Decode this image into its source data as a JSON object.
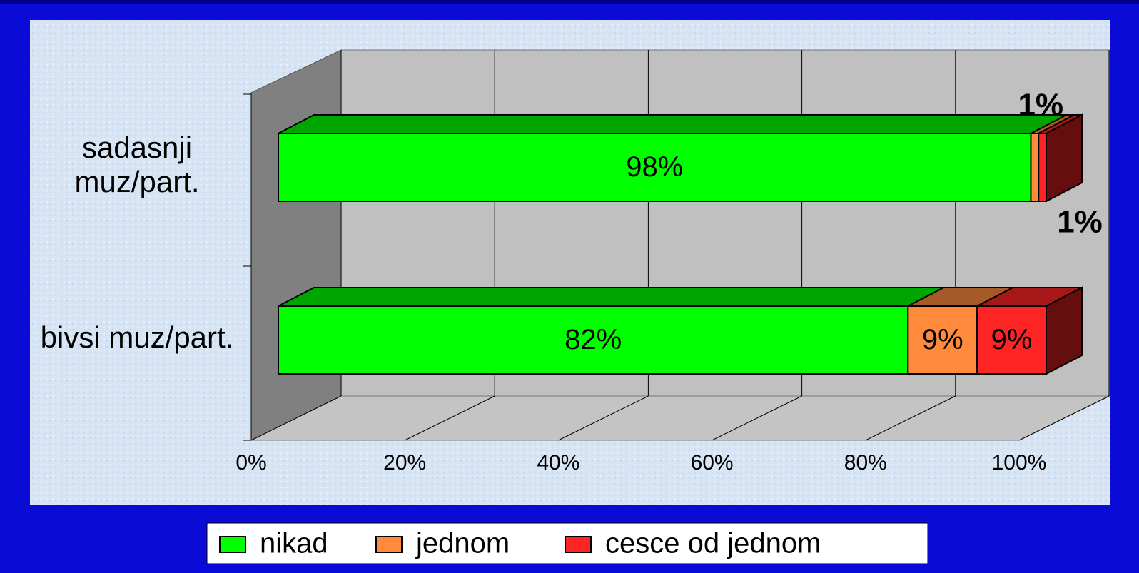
{
  "chart_data": {
    "type": "bar",
    "orientation": "horizontal",
    "stacked": true,
    "categories": [
      "sadasnji muz/part.",
      "bivsi muz/part."
    ],
    "series": [
      {
        "name": "nikad",
        "color": "#00ff00",
        "values": [
          98,
          82
        ],
        "value_labels": [
          "98%",
          "82%"
        ]
      },
      {
        "name": "jednom",
        "color": "#ff8a3c",
        "values": [
          1,
          9
        ],
        "value_labels": [
          "1%",
          "9%"
        ]
      },
      {
        "name": "cesce od jednom",
        "color": "#ff2424",
        "values": [
          1,
          9
        ],
        "value_labels": [
          "1%",
          "9%"
        ]
      }
    ],
    "xlim": [
      0,
      100
    ],
    "xticks": [
      {
        "value": 0,
        "label": "0%"
      },
      {
        "value": 20,
        "label": "20%"
      },
      {
        "value": 40,
        "label": "40%"
      },
      {
        "value": 60,
        "label": "60%"
      },
      {
        "value": 80,
        "label": "80%"
      },
      {
        "value": 100,
        "label": "100%"
      }
    ],
    "grid": true,
    "legend": "bottom"
  }
}
